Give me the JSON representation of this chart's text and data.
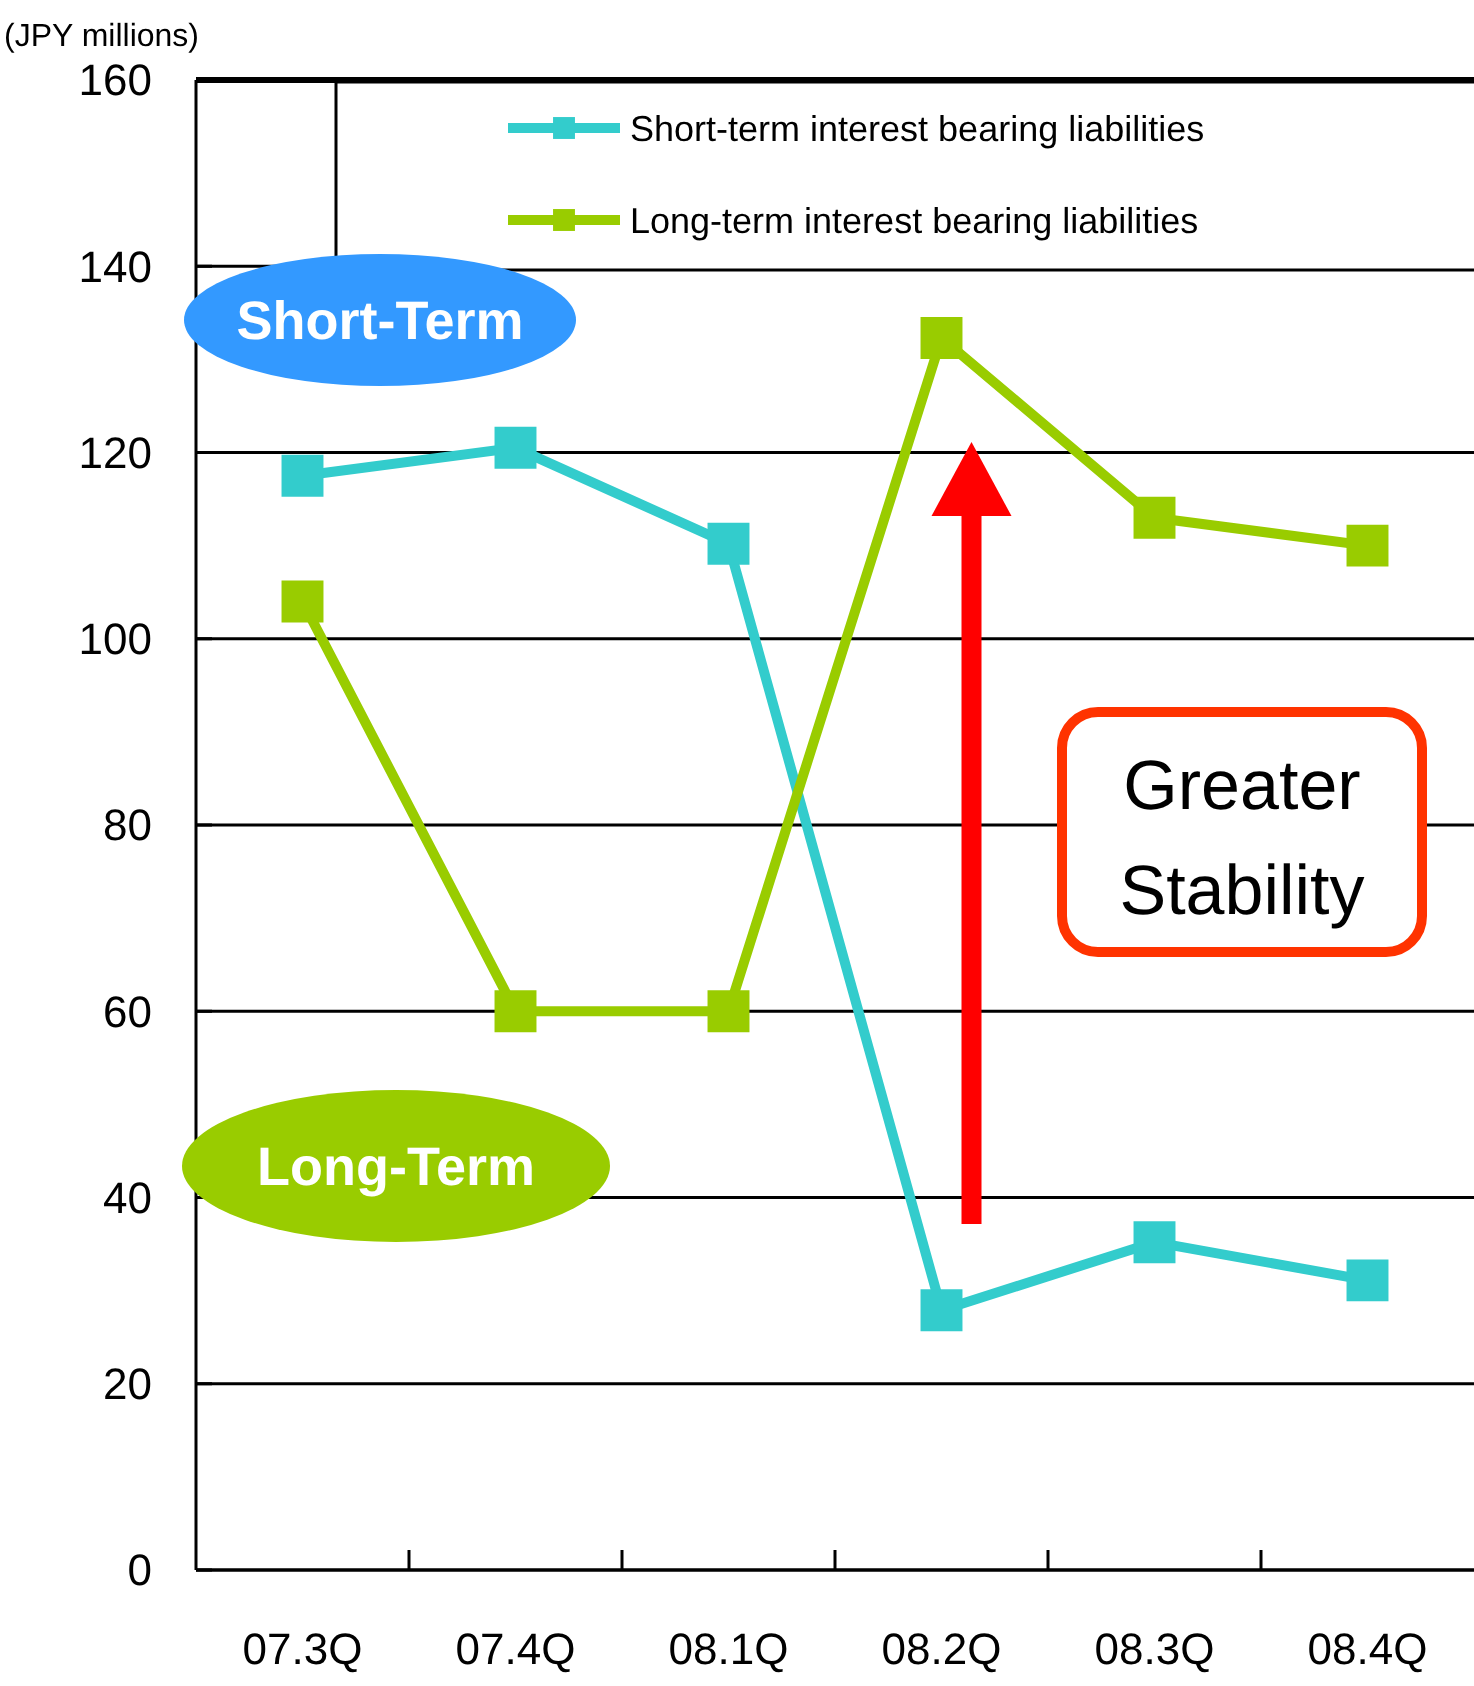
{
  "chart_data": {
    "type": "line",
    "ylabel": "(JPY millions)",
    "categories": [
      "07.3Q",
      "07.4Q",
      "08.1Q",
      "08.2Q",
      "08.3Q",
      "08.4Q"
    ],
    "series": [
      {
        "name": "Short-term interest bearing liabilities",
        "color": "#33cccc",
        "values": [
          117.5,
          120.5,
          110.2,
          27.9,
          35.2,
          31.1
        ]
      },
      {
        "name": "Long-term interest bearing liabilities",
        "color": "#99cc00",
        "values": [
          104,
          60,
          60,
          132.3,
          113,
          110
        ]
      }
    ],
    "ylim": [
      0,
      160
    ],
    "yticks": [
      0,
      20,
      40,
      60,
      80,
      100,
      120,
      140,
      160
    ],
    "grid": "y",
    "legend": "top right",
    "marker": "square",
    "line_style": "solid",
    "annotations": [
      "Short-Term",
      "Long-Term",
      "Greater Stability"
    ]
  }
}
